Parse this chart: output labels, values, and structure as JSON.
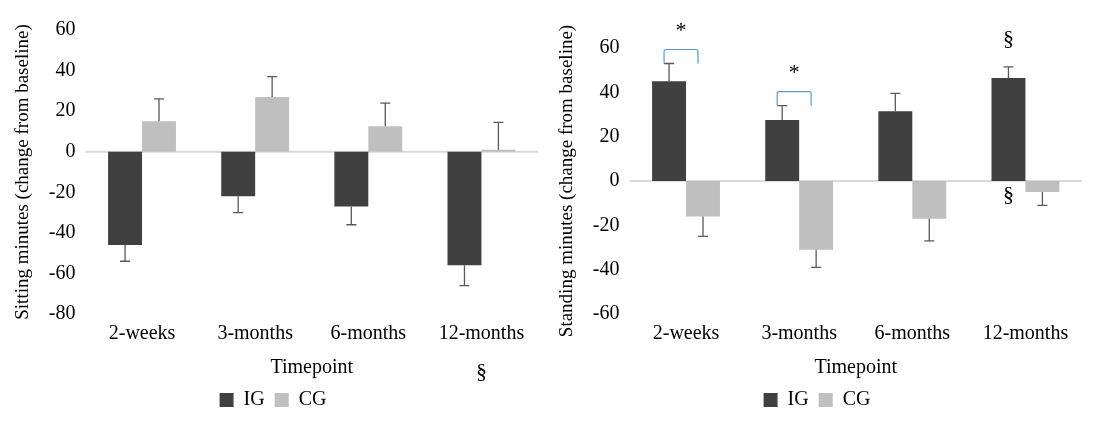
{
  "chart_data": [
    {
      "type": "bar",
      "xlabel": "Timepoint",
      "ylabel": "Sitting minutes (change from baseline)",
      "categories": [
        "2-weeks",
        "3-months",
        "6-months",
        "12-months"
      ],
      "series": [
        {
          "name": "IG",
          "color": "#404040",
          "values": [
            -46,
            -22,
            -27,
            -56
          ],
          "errors": [
            [
              -54,
              -46
            ],
            [
              -30,
              -22
            ],
            [
              -36,
              -27
            ],
            [
              -66,
              -56
            ]
          ]
        },
        {
          "name": "CG",
          "color": "#bfbfbf",
          "values": [
            15,
            27,
            12.5,
            1
          ],
          "errors": [
            [
              15,
              26
            ],
            [
              27,
              37
            ],
            [
              12.5,
              24
            ],
            [
              1,
              14.5
            ]
          ]
        }
      ],
      "ylim": [
        -80,
        60
      ],
      "yticks": [
        -80,
        -60,
        -40,
        -20,
        0,
        20,
        40,
        60
      ],
      "grid": false,
      "legend": "bottom",
      "ref_lines": [
        {
          "axis": "y",
          "value": 0,
          "color": "#d9d9d9"
        }
      ],
      "annotations": [
        "§"
      ]
    },
    {
      "type": "bar",
      "xlabel": "Timepoint",
      "ylabel": "Standing minutes (change from baseline)",
      "categories": [
        "2-weeks",
        "3-months",
        "6-months",
        "12-months"
      ],
      "series": [
        {
          "name": "IG",
          "color": "#404040",
          "values": [
            45,
            27.5,
            31.5,
            46.5
          ],
          "errors": [
            [
              45,
              53
            ],
            [
              27.5,
              34
            ],
            [
              31.5,
              39.5
            ],
            [
              46.5,
              51.5
            ]
          ]
        },
        {
          "name": "CG",
          "color": "#bfbfbf",
          "values": [
            -16,
            -31,
            -17,
            -5
          ],
          "errors": [
            [
              -25,
              -16
            ],
            [
              -39,
              -31
            ],
            [
              -27,
              -17
            ],
            [
              -11,
              -5
            ]
          ]
        }
      ],
      "ylim": [
        -60,
        60
      ],
      "yticks": [
        -60,
        -40,
        -20,
        0,
        20,
        40,
        60
      ],
      "grid": false,
      "legend": "bottom",
      "ref_lines": [
        {
          "axis": "y",
          "value": 0,
          "color": "#d9d9d9"
        }
      ],
      "annotations": [
        "*",
        "*",
        "§",
        "§"
      ]
    }
  ]
}
